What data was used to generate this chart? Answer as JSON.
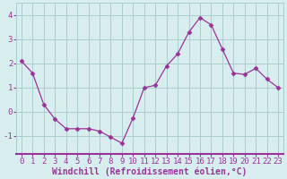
{
  "x": [
    0,
    1,
    2,
    3,
    4,
    5,
    6,
    7,
    8,
    9,
    10,
    11,
    12,
    13,
    14,
    15,
    16,
    17,
    18,
    19,
    20,
    21,
    22,
    23
  ],
  "y": [
    2.1,
    1.6,
    0.3,
    -0.3,
    -0.7,
    -0.7,
    -0.7,
    -0.8,
    -1.05,
    -1.3,
    -0.25,
    1.0,
    1.1,
    1.9,
    2.4,
    3.3,
    3.9,
    3.6,
    2.6,
    1.6,
    1.55,
    1.8,
    1.35,
    1.0
  ],
  "line_color": "#993399",
  "marker": "D",
  "marker_size": 2.5,
  "bg_color": "#d8eeee",
  "grid_color": "#aacccc",
  "xlabel": "Windchill (Refroidissement éolien,°C)",
  "xlabel_fontsize": 7.0,
  "tick_fontsize": 6.5,
  "tick_color": "#993399",
  "xlabel_color": "#993399",
  "ylim": [
    -1.75,
    4.5
  ],
  "yticks": [
    -1,
    0,
    1,
    2,
    3,
    4
  ],
  "xlim": [
    -0.5,
    23.5
  ]
}
